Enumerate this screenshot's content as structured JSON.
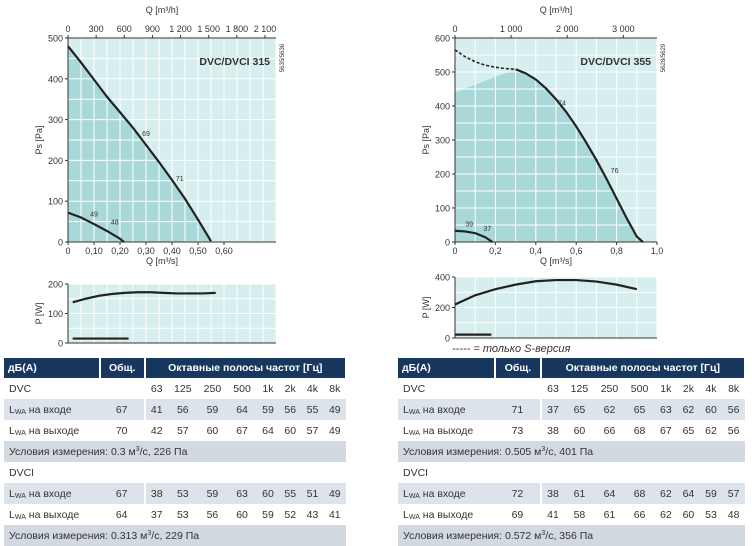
{
  "chart_data": [
    {
      "type": "line",
      "title": "DVC/DVCI 315",
      "code": "5635/5636",
      "xlabel": "Q [m³/s]",
      "x2label": "Q [m³/h]",
      "ylabel": "Ps [Pa]",
      "xlim": [
        0,
        0.8
      ],
      "ylim": [
        0,
        500
      ],
      "x_ticks": [
        "0",
        "0,10",
        "0,20",
        "0,30",
        "0,40",
        "0,50",
        "0,60"
      ],
      "x_tick_values": [
        0,
        0.1,
        0.2,
        0.3,
        0.4,
        0.5,
        0.6
      ],
      "x2_ticks": [
        "0",
        "300",
        "600",
        "900",
        "1 200",
        "1 500",
        "1 800",
        "2 100"
      ],
      "y_ticks": [
        "0",
        "100",
        "200",
        "300",
        "400",
        "500"
      ],
      "series": [
        {
          "x": [
            0,
            0.05,
            0.1,
            0.15,
            0.2,
            0.25,
            0.3,
            0.35,
            0.4,
            0.45,
            0.5,
            0.55
          ],
          "y": [
            480,
            440,
            398,
            356,
            318,
            280,
            238,
            196,
            152,
            106,
            55,
            2
          ]
        },
        {
          "x": [
            0,
            0.05,
            0.1,
            0.15,
            0.2,
            0.215
          ],
          "y": [
            72,
            60,
            44,
            27,
            8,
            0
          ]
        }
      ],
      "annotations": [
        {
          "text": "69",
          "x": 0.3,
          "y": 260
        },
        {
          "text": "71",
          "x": 0.43,
          "y": 150
        },
        {
          "text": "49",
          "x": 0.1,
          "y": 63
        },
        {
          "text": "48",
          "x": 0.18,
          "y": 43
        }
      ],
      "power": {
        "ylabel": "P [W]",
        "ylim": [
          0,
          200
        ],
        "y_ticks": [
          "0",
          "100",
          "200"
        ],
        "series": [
          {
            "x": [
              0,
              0.05,
              0.1,
              0.15,
              0.2,
              0.25,
              0.3,
              0.35,
              0.4,
              0.45,
              0.5,
              0.55
            ],
            "y": [
              138,
              150,
              160,
              166,
              170,
              172,
              172,
              170,
              168,
              168,
              168,
              170
            ]
          },
          {
            "x": [
              0,
              0.05,
              0.1,
              0.15,
              0.2,
              0.215
            ],
            "y": [
              15,
              15,
              15,
              15,
              15,
              15
            ]
          }
        ]
      }
    },
    {
      "type": "line",
      "title": "DVC/DVCI 355",
      "code": "5628/5629",
      "xlabel": "Q [m³/s]",
      "x2label": "Q [m³/h]",
      "ylabel": "Ps [Pa]",
      "xlim": [
        0,
        1.0
      ],
      "ylim": [
        0,
        600
      ],
      "x_ticks": [
        "0",
        "0,2",
        "0,4",
        "0,6",
        "0,8",
        "1,0"
      ],
      "x_tick_values": [
        0,
        0.2,
        0.4,
        0.6,
        0.8,
        1.0
      ],
      "x2_ticks": [
        "0",
        "1 000",
        "2 000",
        "3 000"
      ],
      "x2_tick_values": [
        0,
        1000,
        2000,
        3000
      ],
      "y_ticks": [
        "0",
        "100",
        "200",
        "300",
        "400",
        "500",
        "600"
      ],
      "series": [
        {
          "x": [
            0,
            0.05,
            0.1,
            0.15,
            0.2,
            0.25,
            0.3
          ],
          "y": [
            565,
            545,
            530,
            520,
            514,
            510,
            508
          ],
          "dashed": true
        },
        {
          "x": [
            0.3,
            0.35,
            0.4,
            0.45,
            0.5,
            0.55,
            0.6,
            0.65,
            0.7,
            0.75,
            0.8,
            0.85,
            0.9,
            0.93
          ],
          "y": [
            508,
            496,
            478,
            452,
            420,
            383,
            340,
            292,
            241,
            186,
            128,
            70,
            16,
            0
          ]
        },
        {
          "x": [
            0,
            0.05,
            0.1,
            0.15,
            0.185
          ],
          "y": [
            33,
            31,
            26,
            14,
            0
          ]
        }
      ],
      "annotations": [
        {
          "text": "74",
          "x": 0.53,
          "y": 402
        },
        {
          "text": "76",
          "x": 0.79,
          "y": 203
        },
        {
          "text": "39",
          "x": 0.07,
          "y": 45
        },
        {
          "text": "37",
          "x": 0.16,
          "y": 33
        }
      ],
      "power": {
        "ylabel": "P [W]",
        "ylim": [
          0,
          400
        ],
        "y_ticks": [
          "0",
          "200",
          "400"
        ],
        "series": [
          {
            "x": [
              0,
              0.1,
              0.2,
              0.3,
              0.4,
              0.5,
              0.6,
              0.7,
              0.8,
              0.9
            ],
            "y": [
              220,
              280,
              320,
              350,
              372,
              380,
              380,
              370,
              350,
              320
            ]
          },
          {
            "x": [
              0,
              0.1,
              0.18
            ],
            "y": [
              22,
              22,
              22
            ]
          }
        ]
      }
    }
  ],
  "note": "----- = только S-версия",
  "tables": [
    {
      "header": {
        "db": "дБ(A)",
        "total": "Общ.",
        "octaves": "Октавные полосы частот [Гц]"
      },
      "groups": [
        {
          "name": "DVC",
          "freqs": [
            "63",
            "125",
            "250",
            "500",
            "1k",
            "2k",
            "4k",
            "8k"
          ],
          "inlet_label": "на входе",
          "inlet_total": "67",
          "inlet": [
            "41",
            "56",
            "59",
            "64",
            "59",
            "56",
            "55",
            "49"
          ],
          "outlet_label": "на выходе",
          "outlet_total": "70",
          "outlet": [
            "42",
            "57",
            "60",
            "67",
            "64",
            "60",
            "57",
            "49"
          ],
          "conditions_a": "Условия измерения: 0.3 м",
          "conditions_b": "/с, 226 Па"
        },
        {
          "name": "DVCI",
          "inlet_label": "на входе",
          "inlet_total": "67",
          "inlet": [
            "38",
            "53",
            "59",
            "63",
            "60",
            "55",
            "51",
            "49"
          ],
          "outlet_label": "на выходе",
          "outlet_total": "64",
          "outlet": [
            "37",
            "53",
            "56",
            "60",
            "59",
            "52",
            "43",
            "41"
          ],
          "conditions_a": "Условия измерения: 0.313 м",
          "conditions_b": "/с, 229 Па"
        }
      ]
    },
    {
      "header": {
        "db": "дБ(A)",
        "total": "Общ.",
        "octaves": "Октавные полосы частот [Гц]"
      },
      "groups": [
        {
          "name": "DVC",
          "freqs": [
            "63",
            "125",
            "250",
            "500",
            "1k",
            "2k",
            "4k",
            "8k"
          ],
          "inlet_label": "на входе",
          "inlet_total": "71",
          "inlet": [
            "37",
            "65",
            "62",
            "65",
            "63",
            "62",
            "60",
            "56"
          ],
          "outlet_label": "на выходе",
          "outlet_total": "73",
          "outlet": [
            "38",
            "60",
            "66",
            "68",
            "67",
            "65",
            "62",
            "56"
          ],
          "conditions_a": "Условия измерения: 0.505 м",
          "conditions_b": "/с, 401 Па"
        },
        {
          "name": "DVCI",
          "inlet_label": "на входе",
          "inlet_total": "72",
          "inlet": [
            "38",
            "61",
            "64",
            "68",
            "62",
            "64",
            "59",
            "57"
          ],
          "outlet_label": "на выходе",
          "outlet_total": "69",
          "outlet": [
            "41",
            "58",
            "61",
            "66",
            "62",
            "60",
            "53",
            "48"
          ],
          "conditions_a": "Условия измерения: 0.572 м",
          "conditions_b": "/с, 356 Па"
        }
      ]
    }
  ]
}
